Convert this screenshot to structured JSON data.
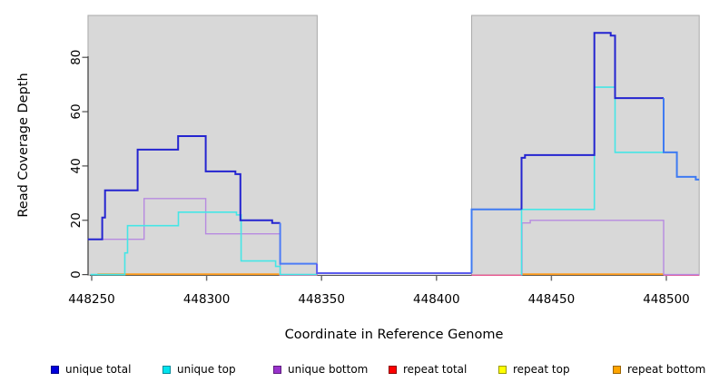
{
  "chart_data": {
    "type": "line",
    "variant": "step-coverage-plot",
    "title": "",
    "xlabel": "Coordinate in Reference Genome",
    "ylabel": "Read Coverage Depth",
    "xlim": [
      448248.4,
      448514.3
    ],
    "ylim": [
      0,
      95
    ],
    "grid": false,
    "x_ticks": [
      {
        "value": 448250,
        "label": "448250"
      },
      {
        "value": 448300,
        "label": "448300"
      },
      {
        "value": 448350,
        "label": "448350"
      },
      {
        "value": 448400,
        "label": "448400"
      },
      {
        "value": 448450,
        "label": "448450"
      },
      {
        "value": 448500,
        "label": "448500"
      }
    ],
    "y_ticks": [
      {
        "value": 0,
        "label": "0"
      },
      {
        "value": 20,
        "label": "20"
      },
      {
        "value": 40,
        "label": "40"
      },
      {
        "value": 60,
        "label": "60"
      },
      {
        "value": 80,
        "label": "80"
      }
    ],
    "shaded_regions": [
      {
        "name": "left-contig",
        "x0": 448248.4,
        "x1": 448348.1,
        "fill": "#d8d8d8",
        "border": "#a9a9a9"
      },
      {
        "name": "right-contig",
        "x0": 448415.3,
        "x1": 448514.3,
        "fill": "#d8d8d8",
        "border": "#a9a9a9"
      }
    ],
    "series": [
      {
        "name": "repeat total",
        "width": 1.4,
        "parts": [
          {
            "color": "#e8568f",
            "connect": false,
            "steps": [
              [
                448331.5,
                -0.25
              ]
            ],
            "end": 448348.2
          },
          {
            "color": "#e8568f",
            "connect": false,
            "steps": [
              [
                448415.3,
                -0.25
              ]
            ],
            "end": 448437.0
          },
          {
            "color": "#e8568f",
            "connect": false,
            "steps": [
              [
                448498.8,
                -0.25
              ]
            ],
            "end": 448514.3
          }
        ]
      },
      {
        "name": "repeat bottom",
        "width": 1.8,
        "parts": [
          {
            "color": "#ff9d20",
            "connect": false,
            "steps": [
              [
                448252.5,
                0.15
              ]
            ],
            "end": 448331.5
          },
          {
            "color": "#ff9d20",
            "connect": false,
            "steps": [
              [
                448437.0,
                0.15
              ]
            ],
            "end": 448498.8
          }
        ]
      },
      {
        "name": "unique bottom",
        "width": 1.4,
        "parts": [
          {
            "color": "#b78ae0",
            "connect": false,
            "steps": [
              [
                448248.4,
                13
              ],
              [
                448272.8,
                28
              ],
              [
                448299.6,
                15
              ],
              [
                448332.0,
                0
              ]
            ],
            "end": 448348.0
          },
          {
            "color": "#b78ae0",
            "connect": false,
            "steps": [
              [
                448436.9,
                0
              ],
              [
                448437.2,
                19
              ],
              [
                448440.8,
                20
              ],
              [
                448498.8,
                0
              ]
            ],
            "end": 448514.3
          }
        ]
      },
      {
        "name": "unique top",
        "width": 1.6,
        "parts": [
          {
            "color": "#45e6e6",
            "connect": false,
            "steps": [
              [
                448249.5,
                0
              ],
              [
                448264.4,
                8
              ],
              [
                448265.6,
                18
              ],
              [
                448287.7,
                23
              ],
              [
                448313.0,
                22
              ],
              [
                448315.0,
                5
              ],
              [
                448330.0,
                3
              ],
              [
                448332.0,
                0
              ]
            ],
            "end": 448348.0
          },
          {
            "color": "#45e6e6",
            "connect": false,
            "steps": [
              [
                448436.8,
                0
              ],
              [
                448437.0,
                24
              ],
              [
                448468.7,
                69
              ],
              [
                448477.7,
                45
              ]
            ],
            "end": 448498.8
          }
        ]
      },
      {
        "name": "unique total",
        "width": 2,
        "parts": [
          {
            "color": "#2424d0",
            "connect": false,
            "steps": [
              [
                448248.4,
                13
              ],
              [
                448254.6,
                21
              ],
              [
                448255.8,
                31
              ],
              [
                448270.0,
                46
              ],
              [
                448287.6,
                51
              ],
              [
                448299.6,
                38
              ],
              [
                448312.5,
                37
              ],
              [
                448314.7,
                20
              ],
              [
                448328.5,
                19
              ]
            ],
            "end": 448332.0
          },
          {
            "color": "#4d7cf6",
            "connect": true,
            "steps": [
              [
                448332.0,
                4
              ]
            ],
            "end": 448348.0
          },
          {
            "color": "#5c5cee",
            "connect": true,
            "steps": [
              [
                448348.0,
                0.55
              ]
            ],
            "end": 448415.3
          },
          {
            "color": "#3f7bf2",
            "connect": true,
            "steps": [
              [
                448415.3,
                24
              ]
            ],
            "end": 448437.0
          },
          {
            "color": "#2424d0",
            "connect": true,
            "steps": [
              [
                448437.0,
                43
              ],
              [
                448438.5,
                44
              ],
              [
                448468.7,
                89
              ],
              [
                448475.8,
                88
              ],
              [
                448477.7,
                65
              ]
            ],
            "end": 448498.8
          },
          {
            "color": "#3f7bf2",
            "connect": true,
            "steps": [
              [
                448498.8,
                45
              ],
              [
                448504.6,
                36
              ],
              [
                448512.8,
                35
              ]
            ],
            "end": 448514.3
          }
        ]
      }
    ],
    "legend": [
      {
        "label": "unique total",
        "fill": "#0000dc",
        "border": "#00008b"
      },
      {
        "label": "unique top",
        "fill": "#00e4ee",
        "border": "#008b9b"
      },
      {
        "label": "unique bottom",
        "fill": "#9932cc",
        "border": "#5e1d7e"
      },
      {
        "label": "repeat total",
        "fill": "#ff0000",
        "border": "#8b0000"
      },
      {
        "label": "repeat top",
        "fill": "#ffff00",
        "border": "#9b9b00"
      },
      {
        "label": "repeat bottom",
        "fill": "#ffa500",
        "border": "#9b6400"
      }
    ],
    "legend_position": "bottom"
  }
}
